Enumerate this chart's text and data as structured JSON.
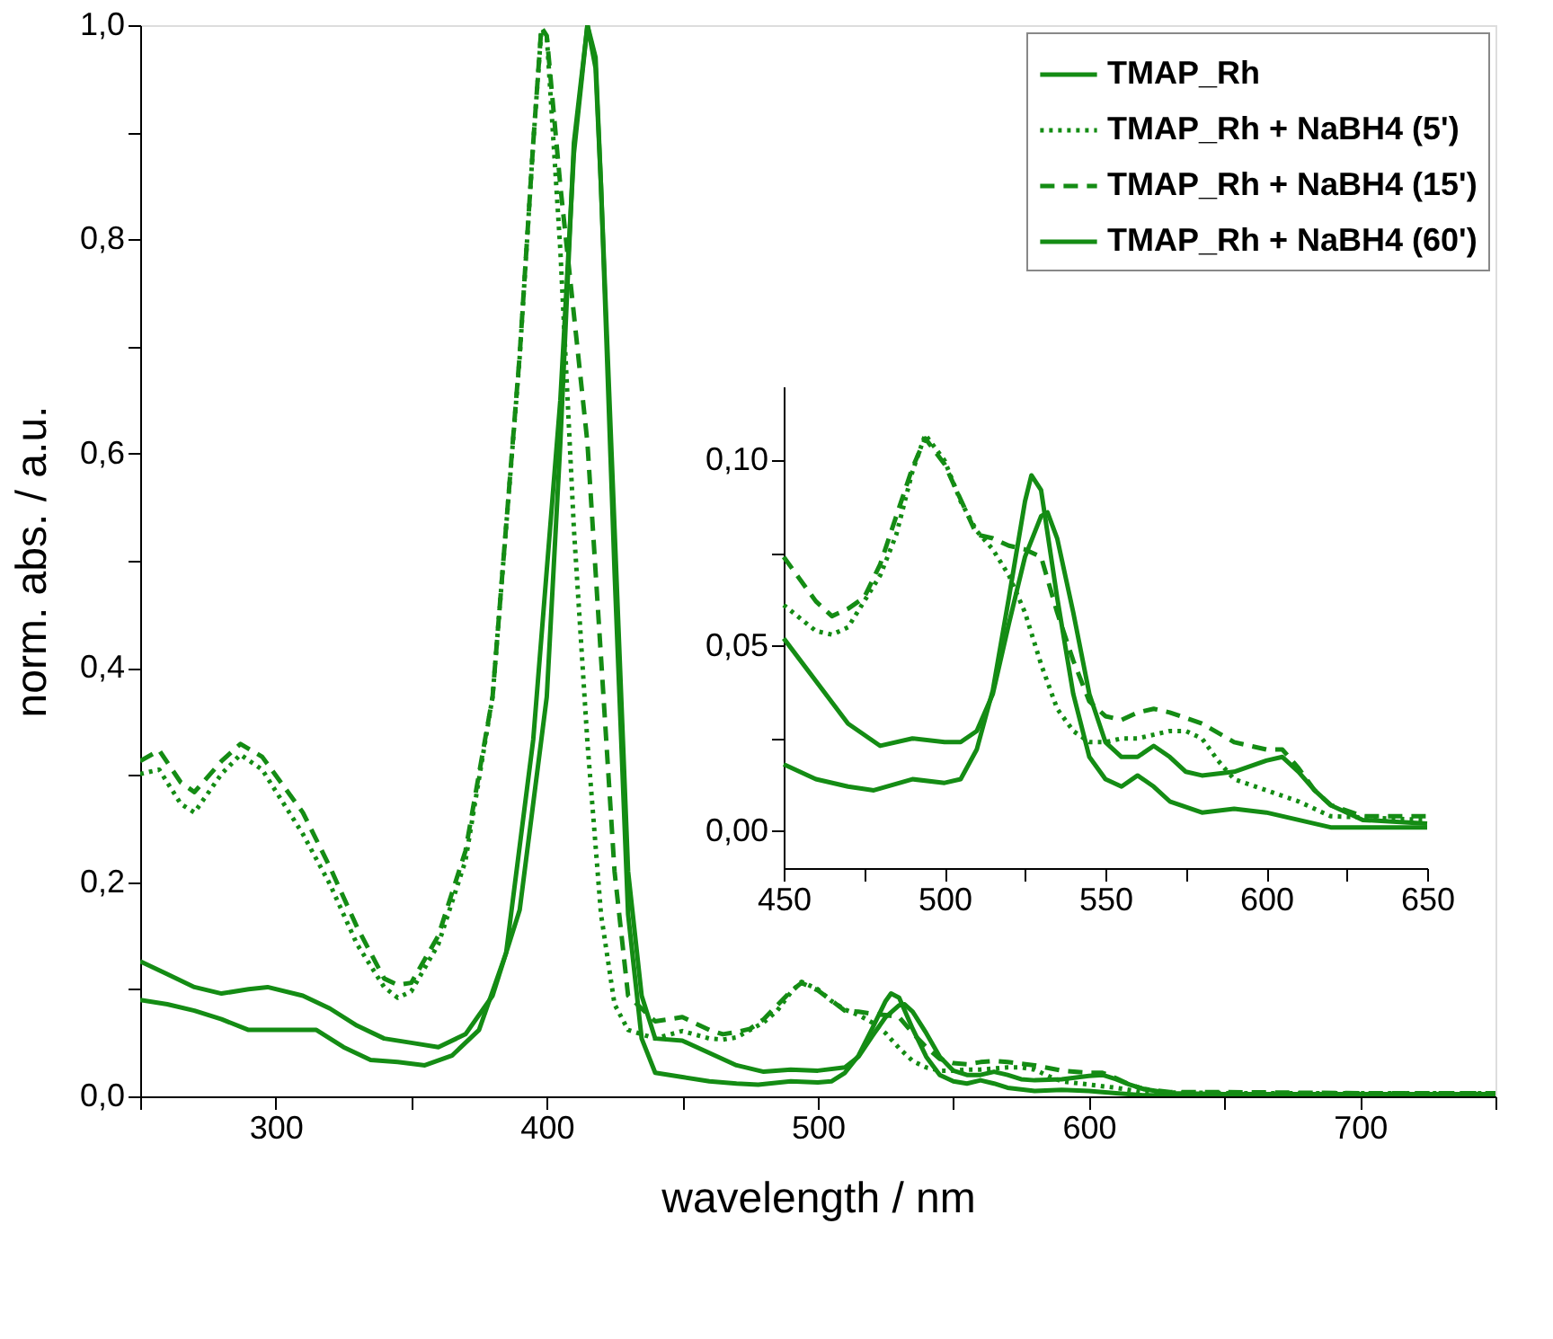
{
  "chart_data": [
    {
      "type": "line",
      "xlabel": "wavelength / nm",
      "ylabel": "norm. abs. / a.u.",
      "xlim": [
        250,
        750
      ],
      "ylim": [
        0,
        1.0
      ],
      "xticks": [
        {
          "value": 250,
          "label": null
        },
        300,
        {
          "value": 350,
          "label": null
        },
        400,
        {
          "value": 450,
          "label": null
        },
        500,
        {
          "value": 550,
          "label": null
        },
        600,
        {
          "value": 650,
          "label": null
        },
        700,
        {
          "value": 750,
          "label": null
        }
      ],
      "yticks": [
        {
          "value": 0,
          "label": "0,0"
        },
        {
          "value": 0.1,
          "label": null
        },
        {
          "value": 0.2,
          "label": "0,2"
        },
        {
          "value": 0.3,
          "label": null
        },
        {
          "value": 0.4,
          "label": "0,4"
        },
        {
          "value": 0.5,
          "label": null
        },
        {
          "value": 0.6,
          "label": "0,6"
        },
        {
          "value": 0.7,
          "label": null
        },
        {
          "value": 0.8,
          "label": "0,8"
        },
        {
          "value": 0.9,
          "label": null
        },
        {
          "value": 1.0,
          "label": "1,0"
        }
      ],
      "grid": false,
      "legend": "top right",
      "marker": "none",
      "series": [
        {
          "name": "TMAP_Rh",
          "color": "#148c14",
          "line_style": "solid",
          "x": [
            250,
            260,
            270,
            280,
            290,
            297,
            310,
            320,
            330,
            340,
            350,
            360,
            370,
            380,
            390,
            400,
            405,
            410,
            415,
            418,
            420,
            425,
            430,
            435,
            440,
            450,
            470,
            480,
            490,
            500,
            510,
            515,
            520,
            525,
            530,
            532,
            535,
            540,
            545,
            550,
            555,
            560,
            565,
            570,
            575,
            580,
            590,
            600,
            605,
            610,
            615,
            620,
            630,
            650,
            700,
            750
          ],
          "values": [
            0.126,
            0.114,
            0.102,
            0.096,
            0.1,
            0.102,
            0.094,
            0.082,
            0.066,
            0.054,
            0.05,
            0.046,
            0.058,
            0.094,
            0.174,
            0.373,
            0.61,
            0.89,
            1.0,
            0.97,
            0.85,
            0.53,
            0.21,
            0.094,
            0.054,
            0.052,
            0.029,
            0.023,
            0.025,
            0.024,
            0.027,
            0.037,
            0.056,
            0.074,
            0.085,
            0.086,
            0.079,
            0.059,
            0.037,
            0.024,
            0.02,
            0.02,
            0.023,
            0.02,
            0.016,
            0.015,
            0.016,
            0.019,
            0.02,
            0.016,
            0.011,
            0.007,
            0.003,
            0.002,
            0.002,
            0.002
          ]
        },
        {
          "name": "TMAP_Rh + NaBH4 (5')",
          "color": "#148c14",
          "line_style": "dotted",
          "x": [
            250,
            257,
            265,
            270,
            280,
            287,
            295,
            310,
            320,
            330,
            340,
            345,
            350,
            360,
            370,
            380,
            390,
            395,
            398,
            400,
            405,
            410,
            415,
            420,
            425,
            430,
            440,
            450,
            460,
            465,
            470,
            480,
            485,
            490,
            494,
            500,
            505,
            510,
            515,
            520,
            525,
            530,
            535,
            540,
            545,
            550,
            555,
            560,
            570,
            575,
            580,
            585,
            590,
            600,
            610,
            620,
            650,
            700,
            750
          ],
          "values": [
            0.301,
            0.305,
            0.273,
            0.265,
            0.301,
            0.319,
            0.305,
            0.245,
            0.198,
            0.142,
            0.102,
            0.092,
            0.098,
            0.142,
            0.22,
            0.373,
            0.69,
            0.89,
            0.996,
            0.99,
            0.79,
            0.53,
            0.33,
            0.17,
            0.086,
            0.062,
            0.054,
            0.061,
            0.054,
            0.053,
            0.055,
            0.069,
            0.08,
            0.097,
            0.107,
            0.1,
            0.089,
            0.081,
            0.076,
            0.069,
            0.059,
            0.045,
            0.033,
            0.027,
            0.024,
            0.024,
            0.025,
            0.025,
            0.027,
            0.027,
            0.025,
            0.019,
            0.014,
            0.011,
            0.008,
            0.004,
            0.003,
            0.003,
            0.003
          ]
        },
        {
          "name": "TMAP_Rh + NaBH4 (15')",
          "color": "#148c14",
          "line_style": "dashed",
          "x": [
            250,
            257,
            265,
            270,
            280,
            287,
            295,
            310,
            320,
            330,
            340,
            345,
            350,
            360,
            370,
            380,
            390,
            395,
            398,
            400,
            405,
            410,
            415,
            420,
            425,
            430,
            440,
            450,
            460,
            465,
            470,
            475,
            480,
            490,
            494,
            500,
            510,
            515,
            520,
            525,
            530,
            535,
            540,
            545,
            550,
            555,
            560,
            565,
            570,
            580,
            590,
            600,
            605,
            610,
            615,
            620,
            630,
            650,
            700,
            750
          ],
          "values": [
            0.313,
            0.323,
            0.293,
            0.284,
            0.313,
            0.329,
            0.317,
            0.265,
            0.214,
            0.158,
            0.11,
            0.104,
            0.106,
            0.15,
            0.229,
            0.373,
            0.692,
            0.89,
            0.998,
            0.99,
            0.85,
            0.73,
            0.61,
            0.41,
            0.21,
            0.094,
            0.07,
            0.074,
            0.062,
            0.058,
            0.06,
            0.063,
            0.072,
            0.098,
            0.106,
            0.099,
            0.08,
            0.079,
            0.077,
            0.076,
            0.074,
            0.059,
            0.046,
            0.035,
            0.031,
            0.03,
            0.032,
            0.033,
            0.032,
            0.029,
            0.024,
            0.022,
            0.022,
            0.017,
            0.011,
            0.007,
            0.004,
            0.004,
            0.003,
            0.003
          ]
        },
        {
          "name": "TMAP_Rh + NaBH4 (60')",
          "color": "#148c14",
          "line_style": "solid",
          "x": [
            250,
            260,
            270,
            280,
            290,
            300,
            315,
            325,
            335,
            345,
            355,
            365,
            375,
            385,
            395,
            405,
            410,
            415,
            418,
            420,
            425,
            430,
            435,
            440,
            450,
            460,
            470,
            478,
            490,
            500,
            505,
            510,
            515,
            520,
            525,
            527,
            530,
            535,
            540,
            545,
            550,
            555,
            560,
            565,
            570,
            580,
            590,
            600,
            610,
            620,
            650,
            700,
            750
          ],
          "values": [
            0.09,
            0.086,
            0.08,
            0.072,
            0.062,
            0.062,
            0.062,
            0.046,
            0.034,
            0.032,
            0.029,
            0.038,
            0.062,
            0.134,
            0.333,
            0.65,
            0.88,
            1.0,
            0.96,
            0.85,
            0.49,
            0.17,
            0.054,
            0.022,
            0.018,
            0.014,
            0.012,
            0.011,
            0.014,
            0.013,
            0.014,
            0.022,
            0.038,
            0.063,
            0.089,
            0.096,
            0.092,
            0.063,
            0.037,
            0.02,
            0.014,
            0.012,
            0.015,
            0.012,
            0.008,
            0.005,
            0.006,
            0.005,
            0.003,
            0.001,
            0.001,
            0.001,
            0.001
          ]
        }
      ]
    },
    {
      "type": "line",
      "xlim": [
        450,
        650
      ],
      "ylim": [
        -0.01,
        0.12
      ],
      "xticks": [
        450,
        {
          "value": 475,
          "label": null
        },
        500,
        {
          "value": 525,
          "label": null
        },
        550,
        {
          "value": 575,
          "label": null
        },
        600,
        {
          "value": 625,
          "label": null
        },
        650
      ],
      "yticks": [
        {
          "value": 0,
          "label": "0,00"
        },
        {
          "value": 0.025,
          "label": null
        },
        {
          "value": 0.05,
          "label": "0,05"
        },
        {
          "value": 0.075,
          "label": null
        },
        {
          "value": 0.1,
          "label": "0,10"
        }
      ],
      "grid": false,
      "marker": "none",
      "series": [
        {
          "color": "#148c14",
          "line_style": "solid",
          "x": [
            450,
            470,
            480,
            490,
            500,
            505,
            510,
            515,
            520,
            525,
            530,
            532,
            535,
            540,
            545,
            550,
            555,
            560,
            565,
            570,
            575,
            580,
            590,
            600,
            605,
            610,
            615,
            620,
            630,
            650
          ],
          "values": [
            0.052,
            0.029,
            0.023,
            0.025,
            0.024,
            0.024,
            0.027,
            0.037,
            0.056,
            0.074,
            0.085,
            0.086,
            0.079,
            0.059,
            0.037,
            0.024,
            0.02,
            0.02,
            0.023,
            0.02,
            0.016,
            0.015,
            0.016,
            0.019,
            0.02,
            0.016,
            0.011,
            0.007,
            0.003,
            0.002
          ]
        },
        {
          "color": "#148c14",
          "line_style": "dotted",
          "x": [
            450,
            460,
            465,
            470,
            480,
            485,
            490,
            494,
            500,
            505,
            510,
            515,
            520,
            525,
            530,
            535,
            540,
            545,
            550,
            555,
            560,
            570,
            575,
            580,
            585,
            590,
            600,
            610,
            620,
            650
          ],
          "values": [
            0.061,
            0.054,
            0.053,
            0.055,
            0.069,
            0.08,
            0.097,
            0.107,
            0.1,
            0.089,
            0.081,
            0.076,
            0.069,
            0.059,
            0.045,
            0.033,
            0.027,
            0.024,
            0.024,
            0.025,
            0.025,
            0.027,
            0.027,
            0.025,
            0.019,
            0.014,
            0.011,
            0.008,
            0.004,
            0.003
          ]
        },
        {
          "color": "#148c14",
          "line_style": "dashed",
          "x": [
            450,
            460,
            465,
            470,
            475,
            480,
            490,
            494,
            500,
            510,
            515,
            520,
            525,
            530,
            535,
            540,
            545,
            550,
            555,
            560,
            565,
            570,
            580,
            590,
            600,
            605,
            610,
            615,
            620,
            630,
            650
          ],
          "values": [
            0.074,
            0.062,
            0.058,
            0.06,
            0.063,
            0.072,
            0.098,
            0.106,
            0.099,
            0.08,
            0.079,
            0.077,
            0.076,
            0.074,
            0.059,
            0.046,
            0.035,
            0.031,
            0.03,
            0.032,
            0.033,
            0.032,
            0.029,
            0.024,
            0.022,
            0.022,
            0.017,
            0.011,
            0.007,
            0.004,
            0.004
          ]
        },
        {
          "color": "#148c14",
          "line_style": "solid",
          "x": [
            450,
            460,
            470,
            478,
            490,
            500,
            505,
            510,
            515,
            520,
            525,
            527,
            530,
            535,
            540,
            545,
            550,
            555,
            560,
            565,
            570,
            580,
            590,
            600,
            610,
            620,
            650
          ],
          "values": [
            0.018,
            0.014,
            0.012,
            0.011,
            0.014,
            0.013,
            0.014,
            0.022,
            0.038,
            0.063,
            0.089,
            0.096,
            0.092,
            0.063,
            0.037,
            0.02,
            0.014,
            0.012,
            0.015,
            0.012,
            0.008,
            0.005,
            0.006,
            0.005,
            0.003,
            0.001,
            0.001
          ]
        }
      ]
    }
  ]
}
